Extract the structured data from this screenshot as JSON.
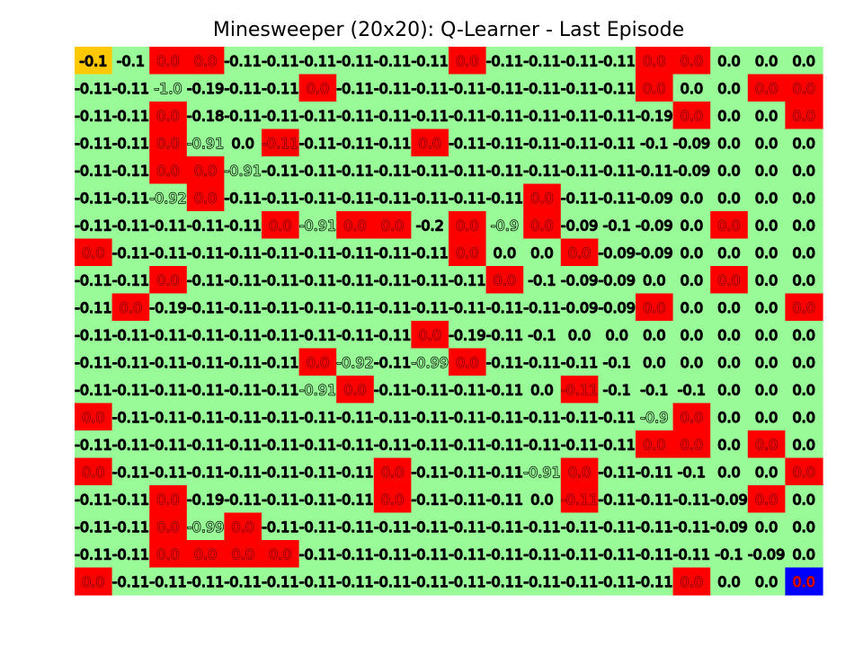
{
  "chart_data": {
    "type": "heatmap",
    "title": "Minesweeper (20x20): Q-Learner - Last Episode",
    "xlabel": "",
    "ylabel": "",
    "rows": 20,
    "cols": 20,
    "grid": false,
    "legend": "none",
    "colors": {
      "default": "#98fb98",
      "mine": "#ff0000",
      "start": "#ffc800",
      "agent": "#0000ff"
    },
    "start_cell": [
      0,
      0
    ],
    "agent_cell": [
      19,
      19
    ],
    "mines": [
      [
        0,
        2
      ],
      [
        0,
        3
      ],
      [
        0,
        10
      ],
      [
        0,
        15
      ],
      [
        0,
        16
      ],
      [
        1,
        6
      ],
      [
        1,
        15
      ],
      [
        1,
        18
      ],
      [
        1,
        19
      ],
      [
        2,
        2
      ],
      [
        2,
        16
      ],
      [
        2,
        19
      ],
      [
        3,
        2
      ],
      [
        3,
        5
      ],
      [
        3,
        9
      ],
      [
        4,
        2
      ],
      [
        4,
        3
      ],
      [
        5,
        3
      ],
      [
        5,
        12
      ],
      [
        6,
        5
      ],
      [
        6,
        7
      ],
      [
        6,
        8
      ],
      [
        6,
        10
      ],
      [
        6,
        12
      ],
      [
        6,
        17
      ],
      [
        7,
        0
      ],
      [
        7,
        10
      ],
      [
        7,
        13
      ],
      [
        8,
        2
      ],
      [
        8,
        11
      ],
      [
        8,
        17
      ],
      [
        9,
        1
      ],
      [
        9,
        15
      ],
      [
        9,
        19
      ],
      [
        10,
        9
      ],
      [
        11,
        6
      ],
      [
        11,
        10
      ],
      [
        12,
        7
      ],
      [
        12,
        13
      ],
      [
        13,
        0
      ],
      [
        13,
        16
      ],
      [
        14,
        15
      ],
      [
        14,
        16
      ],
      [
        14,
        18
      ],
      [
        15,
        0
      ],
      [
        15,
        8
      ],
      [
        15,
        13
      ],
      [
        15,
        19
      ],
      [
        16,
        2
      ],
      [
        16,
        8
      ],
      [
        16,
        13
      ],
      [
        16,
        18
      ],
      [
        17,
        2
      ],
      [
        17,
        4
      ],
      [
        18,
        2
      ],
      [
        18,
        3
      ],
      [
        18,
        4
      ],
      [
        18,
        5
      ],
      [
        19,
        0
      ],
      [
        19,
        16
      ]
    ],
    "values": [
      [
        "-0.1",
        "-0.1",
        "0.0",
        "0.0",
        "-0.11",
        "-0.11",
        "-0.11",
        "-0.11",
        "-0.11",
        "-0.11",
        "0.0",
        "-0.11",
        "-0.11",
        "-0.11",
        "-0.11",
        "0.0",
        "0.0",
        "0.0",
        "0.0",
        "0.0"
      ],
      [
        "-0.11",
        "-0.11",
        "-1.0",
        "-0.19",
        "-0.11",
        "-0.11",
        "0.0",
        "-0.11",
        "-0.11",
        "-0.11",
        "-0.11",
        "-0.11",
        "-0.11",
        "-0.11",
        "-0.11",
        "0.0",
        "0.0",
        "0.0",
        "0.0",
        "0.0"
      ],
      [
        "-0.11",
        "-0.11",
        "0.0",
        "-0.18",
        "-0.11",
        "-0.11",
        "-0.11",
        "-0.11",
        "-0.11",
        "-0.11",
        "-0.11",
        "-0.11",
        "-0.11",
        "-0.11",
        "-0.11",
        "-0.19",
        "0.0",
        "0.0",
        "0.0",
        "0.0"
      ],
      [
        "-0.11",
        "-0.11",
        "0.0",
        "-0.91",
        "0.0",
        "-0.11",
        "-0.11",
        "-0.11",
        "-0.11",
        "0.0",
        "-0.11",
        "-0.11",
        "-0.11",
        "-0.11",
        "-0.11",
        "-0.1",
        "-0.09",
        "0.0",
        "0.0",
        "0.0"
      ],
      [
        "-0.11",
        "-0.11",
        "0.0",
        "0.0",
        "-0.91",
        "-0.11",
        "-0.11",
        "-0.11",
        "-0.11",
        "-0.11",
        "-0.11",
        "-0.11",
        "-0.11",
        "-0.11",
        "-0.11",
        "-0.11",
        "-0.09",
        "0.0",
        "0.0",
        "0.0"
      ],
      [
        "-0.11",
        "-0.11",
        "-0.92",
        "0.0",
        "-0.11",
        "-0.11",
        "-0.11",
        "-0.11",
        "-0.11",
        "-0.11",
        "-0.11",
        "-0.11",
        "0.0",
        "-0.11",
        "-0.11",
        "-0.09",
        "0.0",
        "0.0",
        "0.0",
        "0.0"
      ],
      [
        "-0.11",
        "-0.11",
        "-0.11",
        "-0.11",
        "-0.11",
        "0.0",
        "-0.91",
        "0.0",
        "0.0",
        "-0.2",
        "0.0",
        "-0.9",
        "0.0",
        "-0.09",
        "-0.1",
        "-0.09",
        "0.0",
        "0.0",
        "0.0",
        "0.0"
      ],
      [
        "0.0",
        "-0.11",
        "-0.11",
        "-0.11",
        "-0.11",
        "-0.11",
        "-0.11",
        "-0.11",
        "-0.11",
        "-0.11",
        "0.0",
        "0.0",
        "0.0",
        "0.0",
        "-0.09",
        "-0.09",
        "0.0",
        "0.0",
        "0.0",
        "0.0"
      ],
      [
        "-0.11",
        "-0.11",
        "0.0",
        "-0.11",
        "-0.11",
        "-0.11",
        "-0.11",
        "-0.11",
        "-0.11",
        "-0.11",
        "-0.11",
        "0.0",
        "-0.1",
        "-0.09",
        "-0.09",
        "0.0",
        "0.0",
        "0.0",
        "0.0",
        "0.0"
      ],
      [
        "-0.11",
        "0.0",
        "-0.19",
        "-0.11",
        "-0.11",
        "-0.11",
        "-0.11",
        "-0.11",
        "-0.11",
        "-0.11",
        "-0.11",
        "-0.11",
        "-0.11",
        "-0.09",
        "-0.09",
        "0.0",
        "0.0",
        "0.0",
        "0.0",
        "0.0"
      ],
      [
        "-0.11",
        "-0.11",
        "-0.11",
        "-0.11",
        "-0.11",
        "-0.11",
        "-0.11",
        "-0.11",
        "-0.11",
        "0.0",
        "-0.19",
        "-0.11",
        "-0.1",
        "0.0",
        "0.0",
        "0.0",
        "0.0",
        "0.0",
        "0.0",
        "0.0"
      ],
      [
        "-0.11",
        "-0.11",
        "-0.11",
        "-0.11",
        "-0.11",
        "-0.11",
        "0.0",
        "-0.92",
        "-0.11",
        "-0.99",
        "0.0",
        "-0.11",
        "-0.11",
        "-0.11",
        "-0.1",
        "0.0",
        "0.0",
        "0.0",
        "0.0",
        "0.0"
      ],
      [
        "-0.11",
        "-0.11",
        "-0.11",
        "-0.11",
        "-0.11",
        "-0.11",
        "-0.91",
        "0.0",
        "-0.11",
        "-0.11",
        "-0.11",
        "-0.11",
        "0.0",
        "-0.11",
        "-0.1",
        "-0.1",
        "-0.1",
        "0.0",
        "0.0",
        "0.0"
      ],
      [
        "0.0",
        "-0.11",
        "-0.11",
        "-0.11",
        "-0.11",
        "-0.11",
        "-0.11",
        "-0.11",
        "-0.11",
        "-0.11",
        "-0.11",
        "-0.11",
        "-0.11",
        "-0.11",
        "-0.11",
        "-0.9",
        "0.0",
        "0.0",
        "0.0",
        "0.0"
      ],
      [
        "-0.11",
        "-0.11",
        "-0.11",
        "-0.11",
        "-0.11",
        "-0.11",
        "-0.11",
        "-0.11",
        "-0.11",
        "-0.11",
        "-0.11",
        "-0.11",
        "-0.11",
        "-0.11",
        "-0.11",
        "0.0",
        "0.0",
        "0.0",
        "0.0",
        "0.0"
      ],
      [
        "0.0",
        "-0.11",
        "-0.11",
        "-0.11",
        "-0.11",
        "-0.11",
        "-0.11",
        "-0.11",
        "0.0",
        "-0.11",
        "-0.11",
        "-0.11",
        "-0.91",
        "0.0",
        "-0.11",
        "-0.11",
        "-0.1",
        "0.0",
        "0.0",
        "0.0"
      ],
      [
        "-0.11",
        "-0.11",
        "0.0",
        "-0.19",
        "-0.11",
        "-0.11",
        "-0.11",
        "-0.11",
        "0.0",
        "-0.11",
        "-0.11",
        "-0.11",
        "0.0",
        "-0.11",
        "-0.11",
        "-0.11",
        "-0.11",
        "-0.09",
        "0.0",
        "0.0"
      ],
      [
        "-0.11",
        "-0.11",
        "0.0",
        "-0.99",
        "0.0",
        "-0.11",
        "-0.11",
        "-0.11",
        "-0.11",
        "-0.11",
        "-0.11",
        "-0.11",
        "-0.11",
        "-0.11",
        "-0.11",
        "-0.11",
        "-0.11",
        "-0.09",
        "0.0",
        "0.0"
      ],
      [
        "-0.11",
        "-0.11",
        "0.0",
        "0.0",
        "0.0",
        "0.0",
        "-0.11",
        "-0.11",
        "-0.11",
        "-0.11",
        "-0.11",
        "-0.11",
        "-0.11",
        "-0.11",
        "-0.11",
        "-0.11",
        "-0.11",
        "-0.1",
        "-0.09",
        "0.0"
      ],
      [
        "0.0",
        "-0.11",
        "-0.11",
        "-0.11",
        "-0.11",
        "-0.11",
        "-0.11",
        "-0.11",
        "-0.11",
        "-0.11",
        "-0.11",
        "-0.11",
        "-0.11",
        "-0.11",
        "-0.11",
        "-0.11",
        "0.0",
        "0.0",
        "0.0",
        "0.0"
      ]
    ]
  }
}
